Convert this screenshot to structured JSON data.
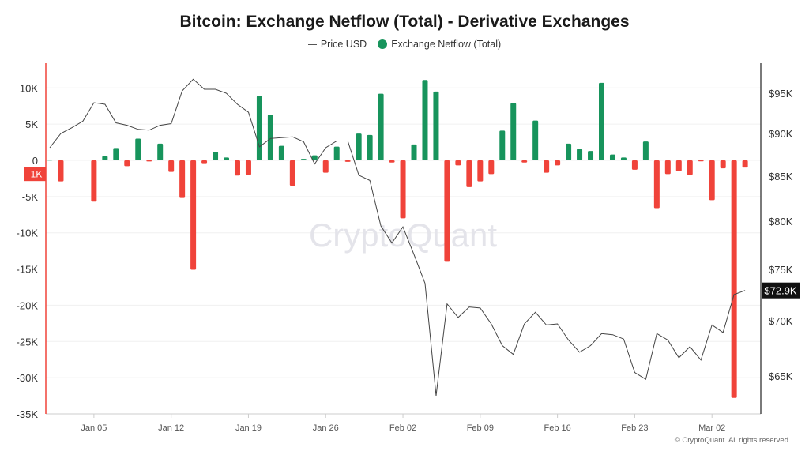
{
  "chart_data": {
    "type": "bar+line",
    "title": "Bitcoin: Exchange Netflow (Total) - Derivative Exchanges",
    "legend_position": "top-center",
    "grid": true,
    "x_start_date": "2025-01-01",
    "x_tick_labels": [
      "Jan 05",
      "Jan 12",
      "Jan 19",
      "Jan 26",
      "Feb 02",
      "Feb 09",
      "Feb 16",
      "Feb 23",
      "Mar 02"
    ],
    "x_tick_dates": [
      "2025-01-05",
      "2025-01-12",
      "2025-01-19",
      "2025-01-26",
      "2025-02-02",
      "2025-02-09",
      "2025-02-16",
      "2025-02-23",
      "2025-03-02"
    ],
    "left_axis": {
      "ylim": [
        -35000,
        13000
      ],
      "ticks": [
        10000,
        5000,
        0,
        -5000,
        -10000,
        -15000,
        -20000,
        -25000,
        -30000,
        -35000
      ],
      "tick_labels": [
        "10K",
        "5K",
        "0",
        "-5K",
        "-10K",
        "-15K",
        "-20K",
        "-25K",
        "-30K",
        "-35K"
      ]
    },
    "right_axis": {
      "scale": "log",
      "ticks": [
        95000,
        90000,
        85000,
        80000,
        75000,
        70000,
        65000
      ],
      "tick_labels": [
        "$95K",
        "$90K",
        "$85K",
        "$80K",
        "$75K",
        "$70K",
        "$65K"
      ]
    },
    "series": [
      {
        "name": "Price USD",
        "type": "line",
        "axis": "right",
        "color": "#444444",
        "values": [
          88300,
          90000,
          90700,
          91500,
          93800,
          93600,
          91300,
          91000,
          90500,
          90400,
          91000,
          91200,
          95300,
          96800,
          95500,
          95500,
          95000,
          93600,
          92600,
          88400,
          89400,
          89500,
          89600,
          89000,
          86400,
          88300,
          89100,
          89100,
          85100,
          84500,
          79500,
          77700,
          79400,
          76500,
          73600,
          63300,
          71600,
          70300,
          71300,
          71200,
          69700,
          67700,
          66900,
          69700,
          70800,
          69600,
          69700,
          68200,
          67100,
          67700,
          68800,
          68700,
          68300,
          65300,
          64700,
          68800,
          68200,
          66600,
          67600,
          66400,
          69600,
          68900,
          72500,
          72900
        ]
      },
      {
        "name": "Exchange Netflow (Total)",
        "type": "bar",
        "axis": "left",
        "positive_color": "#17945c",
        "negative_color": "#f0433a",
        "values": [
          100,
          -2900,
          0,
          0,
          -5700,
          600,
          1700,
          -800,
          3000,
          -150,
          2300,
          -1600,
          -5200,
          -15100,
          -400,
          1200,
          400,
          -2100,
          -2000,
          8900,
          6300,
          2000,
          -3500,
          200,
          700,
          -1700,
          1900,
          -200,
          3700,
          3500,
          9200,
          -300,
          -8000,
          2200,
          11100,
          9500,
          -14000,
          -700,
          -3700,
          -2900,
          -1900,
          4100,
          7900,
          -300,
          5500,
          -1700,
          -700,
          2300,
          1600,
          1300,
          10700,
          800,
          400,
          -1300,
          2600,
          -6600,
          -1900,
          -1500,
          -2000,
          -100,
          -5500,
          -1100,
          -32800,
          -1000
        ]
      }
    ],
    "last_value_labels": {
      "netflow": "-1K",
      "price": "$72.9K"
    }
  },
  "watermark": "CryptoQuant",
  "footer": "© CryptoQuant. All rights reserved"
}
